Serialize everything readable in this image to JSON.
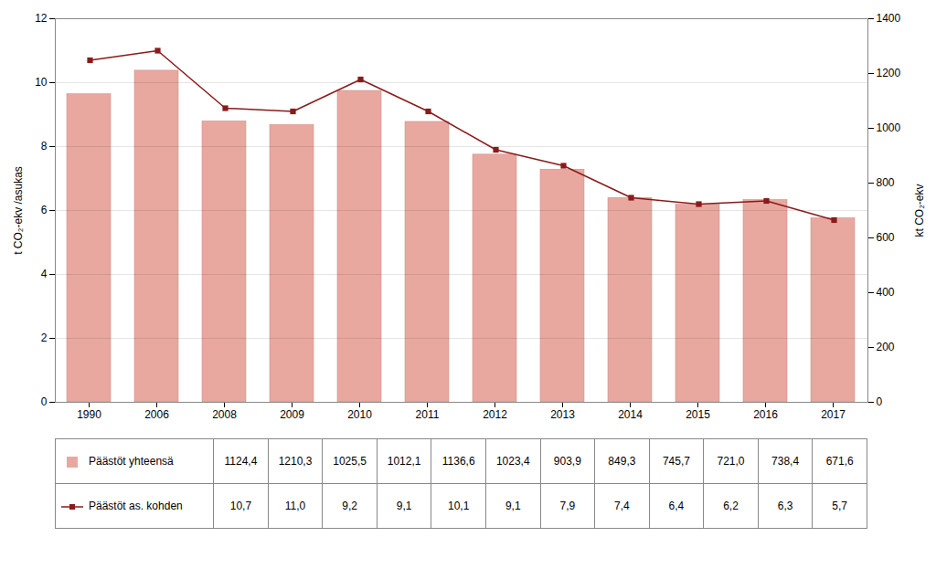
{
  "chart_data": {
    "type": "bar",
    "categories": [
      "1990",
      "2006",
      "2008",
      "2009",
      "2010",
      "2011",
      "2012",
      "2013",
      "2014",
      "2015",
      "2016",
      "2017"
    ],
    "ylabel": "t CO₂-ekv /asukas",
    "y2label": "kt CO₂-ekv",
    "ylim": [
      0,
      12
    ],
    "yticks": [
      0,
      2,
      4,
      6,
      8,
      10,
      12
    ],
    "y2lim": [
      0,
      1400
    ],
    "y2ticks": [
      0,
      200,
      400,
      600,
      800,
      1000,
      1200,
      1400
    ],
    "grid": true,
    "legend": "bottom",
    "series": [
      {
        "name": "Päästöt yhteensä",
        "type": "bar",
        "axis": "y2",
        "color": "#e8a8a0",
        "values": [
          1124.4,
          1210.3,
          1025.5,
          1012.1,
          1136.6,
          1023.4,
          903.9,
          849.3,
          745.7,
          721.0,
          738.4,
          671.6
        ],
        "value_labels": [
          "1124,4",
          "1210,3",
          "1025,5",
          "1012,1",
          "1136,6",
          "1023,4",
          "903,9",
          "849,3",
          "745,7",
          "721,0",
          "738,4",
          "671,6"
        ]
      },
      {
        "name": "Päästöt as. kohden",
        "type": "line",
        "marker": "square",
        "color": "#8b1a1a",
        "values": [
          10.7,
          11.0,
          9.2,
          9.1,
          10.1,
          9.1,
          7.9,
          7.4,
          6.4,
          6.2,
          6.3,
          5.7
        ],
        "value_labels": [
          "10,7",
          "11,0",
          "9,2",
          "9,1",
          "10,1",
          "9,1",
          "7,9",
          "7,4",
          "6,4",
          "6,2",
          "6,3",
          "5,7"
        ]
      }
    ]
  }
}
